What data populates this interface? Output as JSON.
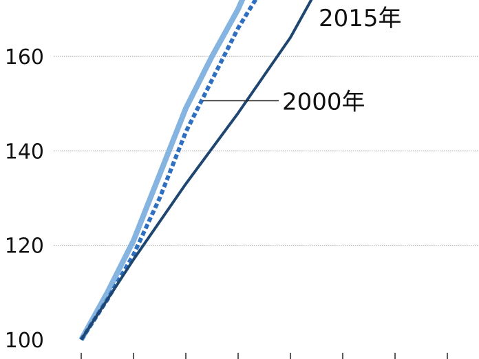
{
  "chart_data": {
    "type": "line",
    "title": "",
    "xlabel": "",
    "ylabel": "",
    "ylim": [
      100,
      175
    ],
    "yticks": [
      100,
      120,
      140,
      160
    ],
    "ytick_labels": [
      "100",
      "120",
      "140",
      "160"
    ],
    "grid": "horizontal",
    "x_tick_count": 8,
    "xlim": [
      0,
      7.35
    ],
    "series": [
      {
        "name": "2000年",
        "style": "dashed",
        "color": "#2f6fc0",
        "x": [
          0,
          0.5,
          1,
          1.5,
          2,
          2.5,
          3,
          3.5
        ],
        "y": [
          100,
          108.5,
          118,
          130,
          144,
          155,
          166,
          175
        ]
      },
      {
        "name": "",
        "style": "light-solid",
        "color": "#7fb0de",
        "x": [
          0,
          0.5,
          1,
          1.5,
          2,
          2.5,
          3,
          3.2
        ],
        "y": [
          100,
          110,
          121,
          135,
          149,
          160,
          170,
          175
        ]
      },
      {
        "name": "2015年",
        "style": "solid",
        "color": "#1e4670",
        "x": [
          0,
          1,
          2,
          3,
          4,
          4.5
        ],
        "y": [
          100,
          117,
          133,
          148,
          164,
          174
        ]
      }
    ],
    "annotations": [
      {
        "series": 0,
        "text": "2000年",
        "point_x": 2.35,
        "point_y": 150.6
      },
      {
        "series": 2,
        "text": "2015年",
        "point_x": 4.45,
        "point_y": 173
      }
    ]
  }
}
